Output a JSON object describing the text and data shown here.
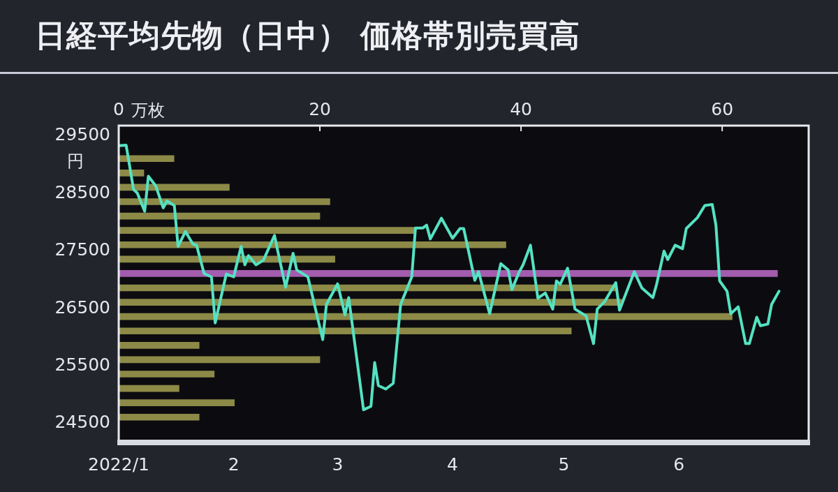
{
  "chart_data": [
    {
      "type": "bar",
      "orientation": "horizontal",
      "xlabel": "万枚",
      "tick_labels": "x",
      "xlim": [
        0,
        68.6
      ],
      "xticks": [
        0,
        20,
        40,
        60
      ],
      "categories": [
        null,
        null,
        null,
        null,
        null,
        null,
        null,
        null,
        null,
        null,
        null,
        null,
        null,
        null,
        null,
        null,
        null,
        null,
        null
      ],
      "values": [
        5.5,
        2.5,
        11,
        21,
        20,
        29.5,
        38.5,
        21.5,
        65.5,
        49.5,
        50,
        61,
        45,
        8,
        20,
        9.5,
        6,
        11.5,
        8
      ],
      "colors": [
        "#8d8a48",
        "#8d8a48",
        "#8d8a48",
        "#8d8a48",
        "#8d8a48",
        "#8d8a48",
        "#8d8a48",
        "#8d8a48",
        "#a45cae",
        "#8d8a48",
        "#8d8a48",
        "#8d8a48",
        "#8d8a48",
        "#8d8a48",
        "#8d8a48",
        "#8d8a48",
        "#8d8a48",
        "#8d8a48",
        "#8d8a48"
      ]
    },
    {
      "type": "line",
      "title": "日経平均先物（日中） 価格帯別売買高",
      "ylabel": "円",
      "color": "#55e2c2",
      "marker": "none",
      "line_style": "solid",
      "xlim": [
        "2022-01-01",
        "2022-07-06"
      ],
      "xticks": [
        {
          "value": "2022-01-01",
          "label": "2022/1"
        },
        {
          "value": "2022-02-01",
          "label": "2"
        },
        {
          "value": "2022-03-01",
          "label": "3"
        },
        {
          "value": "2022-04-01",
          "label": "4"
        },
        {
          "value": "2022-05-01",
          "label": "5"
        },
        {
          "value": "2022-06-01",
          "label": "6"
        }
      ],
      "ylim": [
        24220,
        29680
      ],
      "yticks": [
        24500,
        25500,
        26500,
        27500,
        28500,
        29500
      ],
      "x": [
        "2022-01-01",
        "2022-01-03",
        "2022-01-05",
        "2022-01-06",
        "2022-01-08",
        "2022-01-09",
        "2022-01-11",
        "2022-01-13",
        "2022-01-14",
        "2022-01-16",
        "2022-01-17",
        "2022-01-19",
        "2022-01-21",
        "2022-01-22",
        "2022-01-24",
        "2022-01-26",
        "2022-01-27",
        "2022-01-30",
        "2022-02-01",
        "2022-02-03",
        "2022-02-04",
        "2022-02-05",
        "2022-02-07",
        "2022-02-09",
        "2022-02-12",
        "2022-02-13",
        "2022-02-15",
        "2022-02-17",
        "2022-02-18",
        "2022-02-21",
        "2022-02-25",
        "2022-02-26",
        "2022-03-01",
        "2022-03-03",
        "2022-03-04",
        "2022-03-08",
        "2022-03-10",
        "2022-03-11",
        "2022-03-12",
        "2022-03-14",
        "2022-03-16",
        "2022-03-18",
        "2022-03-21",
        "2022-03-22",
        "2022-03-24",
        "2022-03-25",
        "2022-03-26",
        "2022-03-29",
        "2022-04-01",
        "2022-04-03",
        "2022-04-04",
        "2022-04-07",
        "2022-04-08",
        "2022-04-11",
        "2022-04-14",
        "2022-04-16",
        "2022-04-17",
        "2022-04-19",
        "2022-04-20",
        "2022-04-22",
        "2022-04-24",
        "2022-04-26",
        "2022-04-28",
        "2022-04-29",
        "2022-04-30",
        "2022-05-02",
        "2022-05-04",
        "2022-05-07",
        "2022-05-09",
        "2022-05-10",
        "2022-05-12",
        "2022-05-15",
        "2022-05-16",
        "2022-05-20",
        "2022-05-22",
        "2022-05-25",
        "2022-05-26",
        "2022-05-28",
        "2022-05-29",
        "2022-05-31",
        "2022-06-02",
        "2022-06-03",
        "2022-06-06",
        "2022-06-08",
        "2022-06-10",
        "2022-06-11",
        "2022-06-12",
        "2022-06-14",
        "2022-06-15",
        "2022-06-17",
        "2022-06-19",
        "2022-06-20",
        "2022-06-22",
        "2022-06-23",
        "2022-06-25",
        "2022-06-26",
        "2022-06-28"
      ],
      "values": [
        29330,
        29340,
        28570,
        28510,
        28190,
        28800,
        28630,
        28250,
        28370,
        28290,
        27580,
        27840,
        27620,
        27600,
        27110,
        27050,
        26250,
        27100,
        27050,
        27580,
        27260,
        27420,
        27260,
        27340,
        27770,
        27460,
        26870,
        27460,
        27170,
        27050,
        25960,
        26570,
        26930,
        26390,
        26690,
        24740,
        24800,
        25560,
        25160,
        25100,
        25200,
        26570,
        27050,
        27900,
        27900,
        27950,
        27710,
        28070,
        27720,
        27890,
        27890,
        26990,
        27140,
        26410,
        27280,
        27170,
        26830,
        27140,
        27260,
        27600,
        26680,
        26770,
        26490,
        26980,
        26920,
        27200,
        26490,
        26370,
        25890,
        26490,
        26620,
        26950,
        26470,
        27140,
        26860,
        26690,
        26920,
        27500,
        27350,
        27600,
        27540,
        27890,
        28080,
        28290,
        28310,
        27950,
        26980,
        26800,
        26410,
        26530,
        25890,
        25890,
        26350,
        26200,
        26230,
        26570,
        26800
      ]
    }
  ]
}
